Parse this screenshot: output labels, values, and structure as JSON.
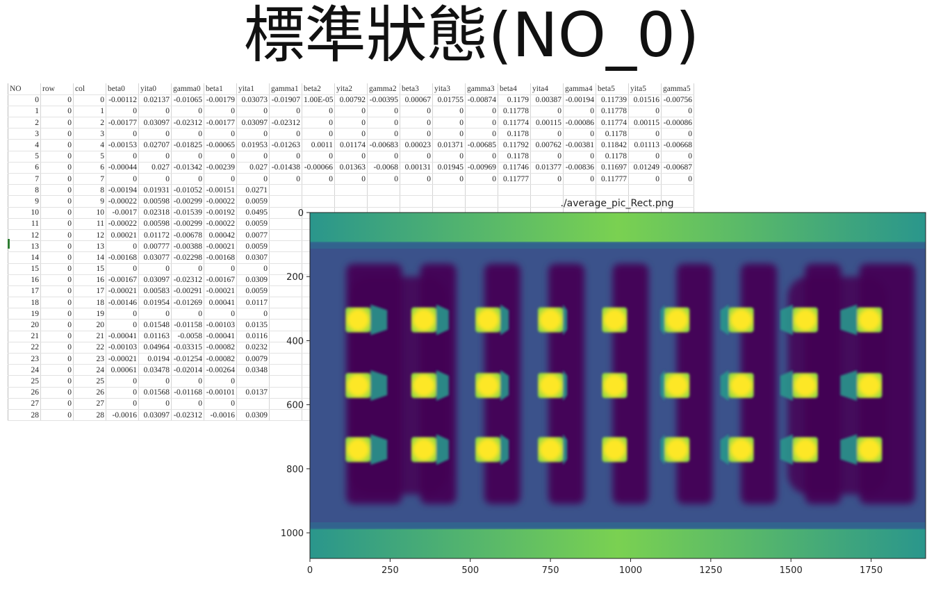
{
  "slide": {
    "title": "標準狀態(NO_0)"
  },
  "spreadsheet": {
    "headers": [
      "NO",
      "row",
      "col",
      "beta0",
      "yita0",
      "gamma0",
      "beta1",
      "yita1",
      "gamma1",
      "beta2",
      "yita2",
      "gamma2",
      "beta3",
      "yita3",
      "gamma3",
      "beta4",
      "yita4",
      "gamma4",
      "beta5",
      "yita5",
      "gamma5"
    ],
    "rows": [
      [
        "0",
        "0",
        "0",
        "-0.00112",
        "0.02137",
        "-0.01065",
        "-0.00179",
        "0.03073",
        "-0.01907",
        "1.00E-05",
        "0.00792",
        "-0.00395",
        "0.00067",
        "0.01755",
        "-0.00874",
        "0.1179",
        "0.00387",
        "-0.00194",
        "0.11739",
        "0.01516",
        "-0.00756"
      ],
      [
        "1",
        "0",
        "1",
        "0",
        "0",
        "0",
        "0",
        "0",
        "0",
        "0",
        "0",
        "0",
        "0",
        "0",
        "0",
        "0.11778",
        "0",
        "0",
        "0.11778",
        "0",
        "0"
      ],
      [
        "2",
        "0",
        "2",
        "-0.00177",
        "0.03097",
        "-0.02312",
        "-0.00177",
        "0.03097",
        "-0.02312",
        "0",
        "0",
        "0",
        "0",
        "0",
        "0",
        "0.11774",
        "0.00115",
        "-0.00086",
        "0.11774",
        "0.00115",
        "-0.00086"
      ],
      [
        "3",
        "0",
        "3",
        "0",
        "0",
        "0",
        "0",
        "0",
        "0",
        "0",
        "0",
        "0",
        "0",
        "0",
        "0",
        "0.1178",
        "0",
        "0",
        "0.1178",
        "0",
        "0"
      ],
      [
        "4",
        "0",
        "4",
        "-0.00153",
        "0.02707",
        "-0.01825",
        "-0.00065",
        "0.01953",
        "-0.01263",
        "0.0011",
        "0.01174",
        "-0.00683",
        "0.00023",
        "0.01371",
        "-0.00685",
        "0.11792",
        "0.00762",
        "-0.00381",
        "0.11842",
        "0.01113",
        "-0.00668"
      ],
      [
        "5",
        "0",
        "5",
        "0",
        "0",
        "0",
        "0",
        "0",
        "0",
        "0",
        "0",
        "0",
        "0",
        "0",
        "0",
        "0.1178",
        "0",
        "0",
        "0.1178",
        "0",
        "0"
      ],
      [
        "6",
        "0",
        "6",
        "-0.00044",
        "0.027",
        "-0.01342",
        "-0.00239",
        "0.027",
        "-0.01438",
        "-0.00066",
        "0.01363",
        "-0.0068",
        "0.00131",
        "0.01945",
        "-0.00969",
        "0.11746",
        "0.01377",
        "-0.00836",
        "0.11697",
        "0.01249",
        "-0.00687"
      ],
      [
        "7",
        "0",
        "7",
        "0",
        "0",
        "0",
        "0",
        "0",
        "0",
        "0",
        "0",
        "0",
        "0",
        "0",
        "0",
        "0.11777",
        "0",
        "0",
        "0.11777",
        "0",
        "0"
      ],
      [
        "8",
        "0",
        "8",
        "-0.00194",
        "0.01931",
        "-0.01052",
        "-0.00151",
        "0.0271"
      ],
      [
        "9",
        "0",
        "9",
        "-0.00022",
        "0.00598",
        "-0.00299",
        "-0.00022",
        "0.0059"
      ],
      [
        "10",
        "0",
        "10",
        "-0.0017",
        "0.02318",
        "-0.01539",
        "-0.00192",
        "0.0495"
      ],
      [
        "11",
        "0",
        "11",
        "-0.00022",
        "0.00598",
        "-0.00299",
        "-0.00022",
        "0.0059"
      ],
      [
        "12",
        "0",
        "12",
        "0.00021",
        "0.01172",
        "-0.00678",
        "0.00042",
        "0.0077"
      ],
      [
        "13",
        "0",
        "13",
        "0",
        "0.00777",
        "-0.00388",
        "-0.00021",
        "0.0059"
      ],
      [
        "14",
        "0",
        "14",
        "-0.00168",
        "0.03077",
        "-0.02298",
        "-0.00168",
        "0.0307"
      ],
      [
        "15",
        "0",
        "15",
        "0",
        "0",
        "0",
        "0",
        "0"
      ],
      [
        "16",
        "0",
        "16",
        "-0.00167",
        "0.03097",
        "-0.02312",
        "-0.00167",
        "0.0309"
      ],
      [
        "17",
        "0",
        "17",
        "-0.00021",
        "0.00583",
        "-0.00291",
        "-0.00021",
        "0.0059"
      ],
      [
        "18",
        "0",
        "18",
        "-0.00146",
        "0.01954",
        "-0.01269",
        "0.00041",
        "0.0117"
      ],
      [
        "19",
        "0",
        "19",
        "0",
        "0",
        "0",
        "0",
        "0"
      ],
      [
        "20",
        "0",
        "20",
        "0",
        "0.01548",
        "-0.01158",
        "-0.00103",
        "0.0135"
      ],
      [
        "21",
        "0",
        "21",
        "-0.00041",
        "0.01163",
        "-0.0058",
        "-0.00041",
        "0.0116"
      ],
      [
        "22",
        "0",
        "22",
        "-0.00103",
        "0.04964",
        "-0.03315",
        "-0.00082",
        "0.0232"
      ],
      [
        "23",
        "0",
        "23",
        "-0.00021",
        "0.0194",
        "-0.01254",
        "-0.00082",
        "0.0079"
      ],
      [
        "24",
        "0",
        "24",
        "0.00061",
        "0.03478",
        "-0.02014",
        "-0.00264",
        "0.0348"
      ],
      [
        "25",
        "0",
        "25",
        "0",
        "0",
        "0",
        "0",
        ""
      ],
      [
        "26",
        "0",
        "26",
        "0",
        "0.01568",
        "-0.01168",
        "-0.00101",
        "0.0137"
      ],
      [
        "27",
        "0",
        "27",
        "0",
        "0",
        "0",
        "0",
        ""
      ],
      [
        "28",
        "0",
        "28",
        "-0.0016",
        "0.03097",
        "-0.02312",
        "-0.0016",
        "0.0309"
      ]
    ]
  },
  "image_plot": {
    "title": "./average_pic_Rect.png",
    "x_ticks": [
      "0",
      "250",
      "500",
      "750",
      "1000",
      "1250",
      "1500",
      "1750"
    ],
    "y_ticks": [
      "0",
      "200",
      "400",
      "600",
      "800",
      "1000"
    ],
    "colormap": {
      "background": "#3b528b",
      "dark": "#440154",
      "band": "#2a968c",
      "band_bright": "#7ad151",
      "spot": "#fde725",
      "spot_edge": "#a0da39"
    }
  }
}
